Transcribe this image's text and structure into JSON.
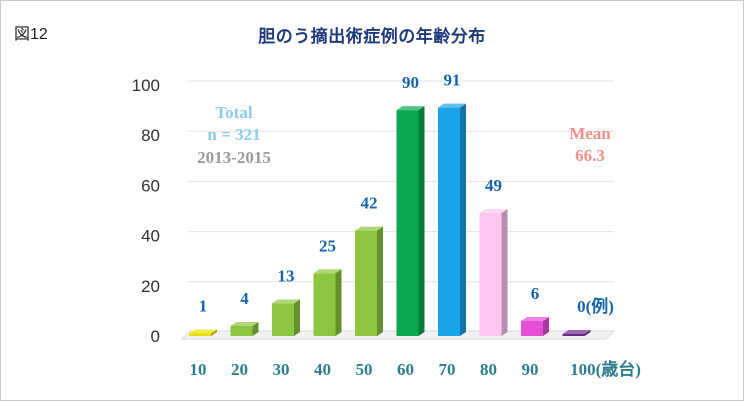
{
  "figure_label": "図12",
  "chart_data": {
    "type": "bar",
    "title": "胆のう摘出術症例の年齢分布",
    "categories": [
      "10",
      "20",
      "30",
      "40",
      "50",
      "60",
      "70",
      "80",
      "90",
      "100(歳台)"
    ],
    "values": [
      1,
      4,
      13,
      25,
      42,
      90,
      91,
      49,
      6,
      0
    ],
    "value_labels": [
      "1",
      "4",
      "13",
      "25",
      "42",
      "90",
      "91",
      "49",
      "6",
      "0(例)"
    ],
    "colors": [
      "#e8e000",
      "#8cc63f",
      "#8cc63f",
      "#8cc63f",
      "#8cc63f",
      "#0aa84f",
      "#1aa3e8",
      "#ffc6f2",
      "#e64ed8",
      "#6a2a8a"
    ],
    "ylim": [
      0,
      100
    ],
    "yticks": [
      0,
      20,
      40,
      60,
      80,
      100
    ],
    "grid": true,
    "annotations": {
      "total_label": "Total",
      "n_label": "n = 321",
      "years": "2013-2015",
      "mean_label": "Mean",
      "mean_value": "66.3"
    }
  }
}
